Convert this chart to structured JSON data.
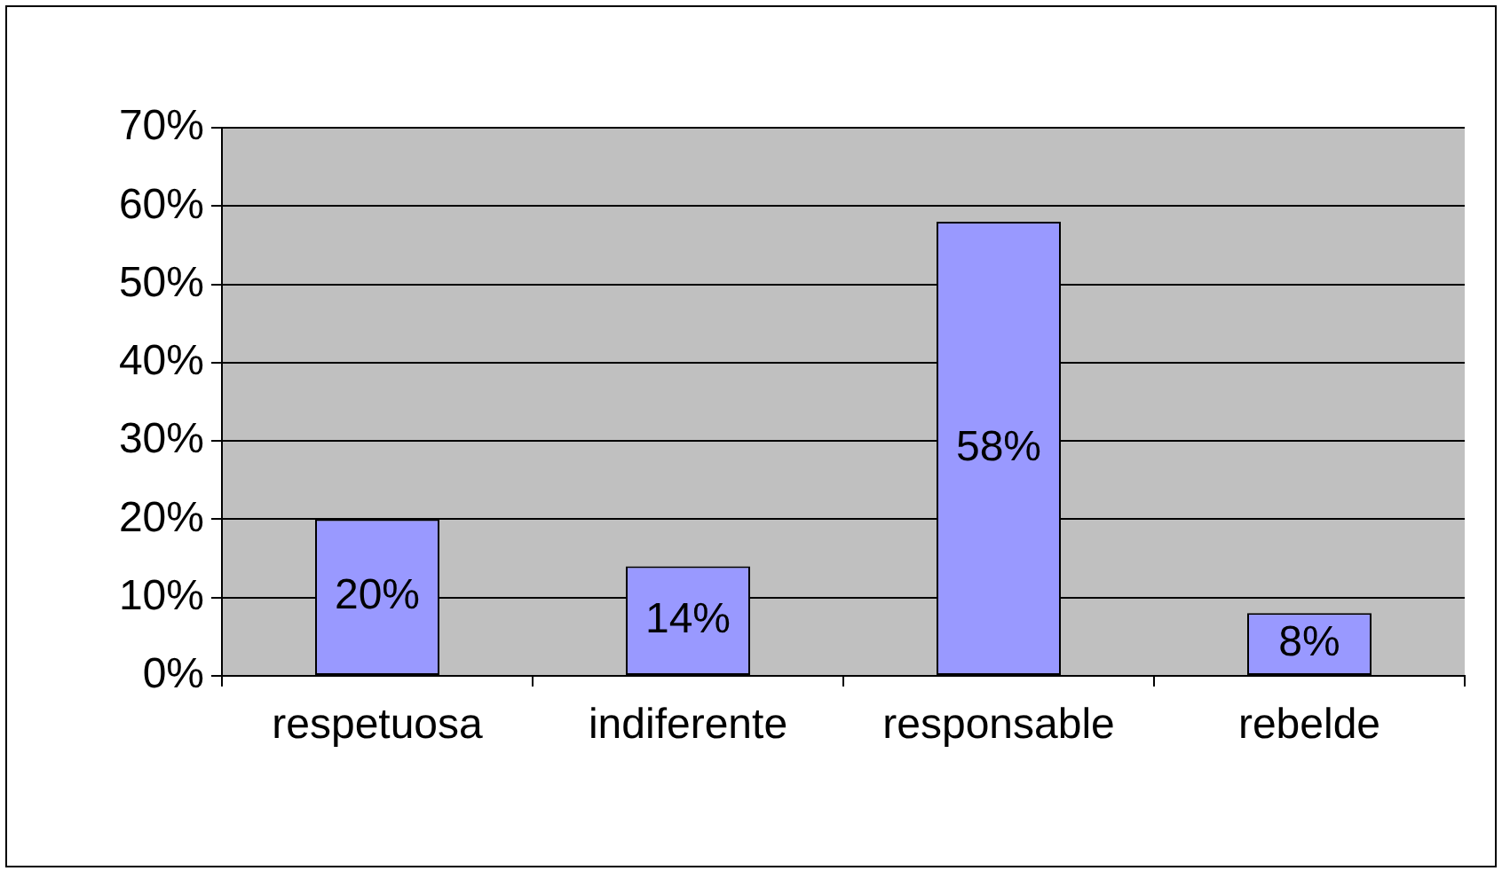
{
  "chart_data": {
    "type": "bar",
    "categories": [
      "respetuosa",
      "indiferente",
      "responsable",
      "rebelde"
    ],
    "values": [
      20,
      14,
      58,
      8
    ],
    "color": "#9999ff",
    "value_labels": [
      "20%",
      "14%",
      "58%",
      "8%"
    ],
    "ylim": [
      0,
      70
    ],
    "yticks": [
      {
        "value": 0,
        "label": "0%"
      },
      {
        "value": 10,
        "label": "10%"
      },
      {
        "value": 20,
        "label": "20%"
      },
      {
        "value": 30,
        "label": "30%"
      },
      {
        "value": 40,
        "label": "40%"
      },
      {
        "value": 50,
        "label": "50%"
      },
      {
        "value": 60,
        "label": "60%"
      },
      {
        "value": 70,
        "label": "70%"
      }
    ],
    "grid": "y",
    "legend": false
  }
}
